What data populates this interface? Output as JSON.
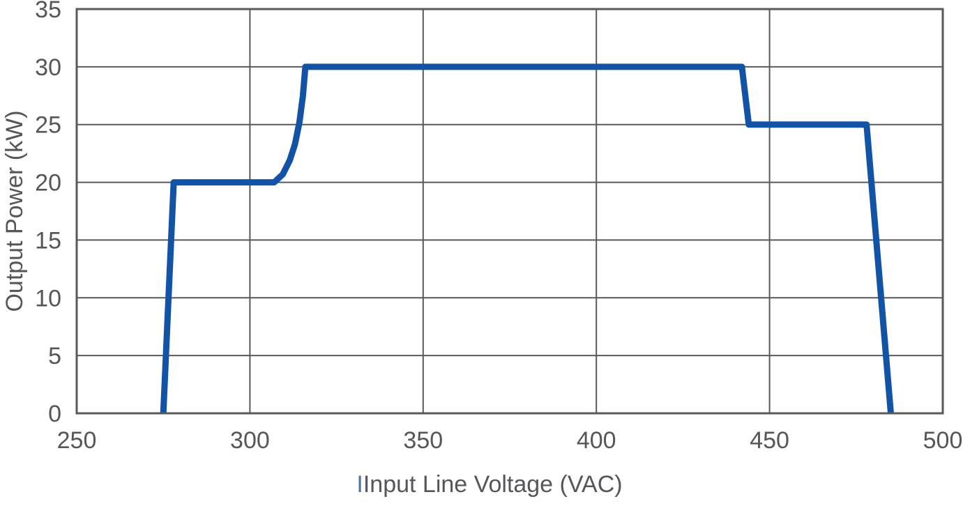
{
  "chart_data": {
    "type": "line",
    "title": "",
    "xlabel": "Input Line Voltage (VAC)",
    "xlabel_cursor": "I",
    "ylabel": "Output Power (kW)",
    "xlim": [
      250,
      500
    ],
    "ylim": [
      0,
      35
    ],
    "xticks": [
      250,
      300,
      350,
      400,
      450,
      500
    ],
    "yticks": [
      0,
      5,
      10,
      15,
      20,
      25,
      30,
      35
    ],
    "grid": true,
    "legend": false,
    "series": [
      {
        "name": "Output Power",
        "color": "#1353a6",
        "points": [
          [
            275,
            0
          ],
          [
            278,
            20
          ],
          [
            307,
            20
          ],
          [
            309.5,
            20.7
          ],
          [
            311.5,
            21.9
          ],
          [
            313,
            23.3
          ],
          [
            314.3,
            25.2
          ],
          [
            315.3,
            27.5
          ],
          [
            316,
            30
          ],
          [
            442,
            30
          ],
          [
            444,
            25
          ],
          [
            478,
            25
          ],
          [
            485,
            0
          ]
        ]
      }
    ],
    "colors": {
      "line": "#1353a6",
      "grid": "#58595b",
      "border": "#58595b",
      "text": "#55565a",
      "cursor": "#4e74a8",
      "background": "#ffffff"
    }
  }
}
